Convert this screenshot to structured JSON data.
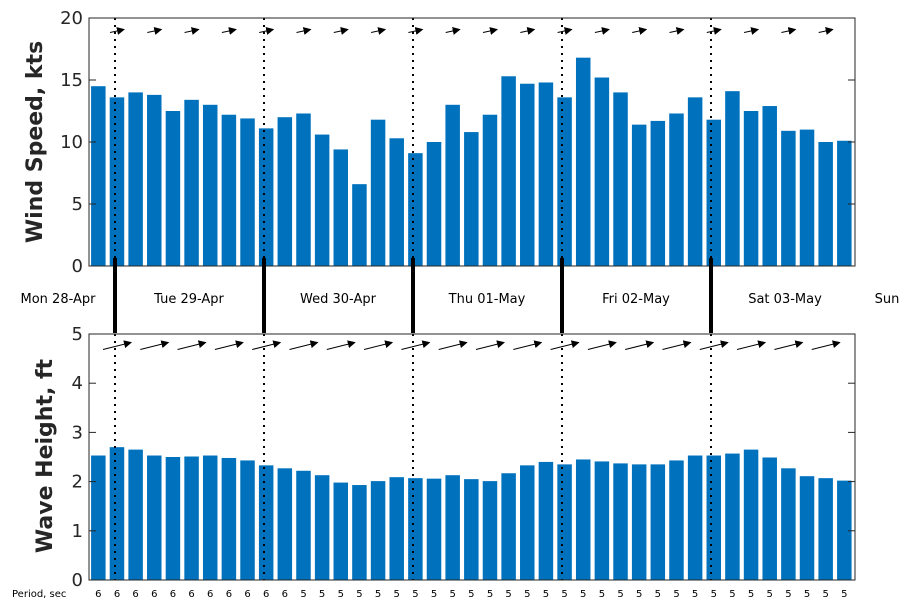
{
  "chart_data": [
    {
      "type": "bar",
      "ylabel": "Wind Speed, kts",
      "ylim": [
        0,
        20
      ],
      "yticks": [
        0,
        5,
        10,
        15,
        20
      ],
      "color": "#0072BD",
      "values": [
        14.5,
        13.6,
        14.0,
        13.8,
        12.5,
        13.4,
        13.0,
        12.2,
        11.9,
        11.1,
        12.0,
        12.3,
        10.6,
        9.4,
        6.6,
        11.8,
        10.3,
        9.1,
        10.0,
        13.0,
        10.8,
        12.2,
        15.3,
        14.7,
        14.8,
        13.6,
        16.8,
        15.2,
        14.0,
        11.4,
        11.7,
        12.3,
        13.6,
        11.8,
        14.1,
        12.5,
        12.9,
        10.9,
        11.0,
        10.0,
        10.1
      ],
      "direction_arrows": "west",
      "grid": false
    },
    {
      "type": "bar",
      "ylabel": "Wave Height, ft",
      "ylim": [
        0,
        5
      ],
      "yticks": [
        0,
        1,
        2,
        3,
        4,
        5
      ],
      "color": "#0072BD",
      "values": [
        2.53,
        2.7,
        2.65,
        2.53,
        2.5,
        2.51,
        2.53,
        2.48,
        2.43,
        2.33,
        2.27,
        2.22,
        2.13,
        1.98,
        1.93,
        2.01,
        2.09,
        2.07,
        2.06,
        2.13,
        2.05,
        2.01,
        2.17,
        2.33,
        2.4,
        2.35,
        2.45,
        2.41,
        2.37,
        2.35,
        2.35,
        2.43,
        2.53,
        2.53,
        2.57,
        2.65,
        2.49,
        2.27,
        2.11,
        2.07,
        2.02
      ],
      "direction_arrows": "east-northeast",
      "period_label": "Period, sec",
      "periods": [
        "6",
        "6",
        "6",
        "6",
        "6",
        "6",
        "6",
        "6",
        "6",
        "6",
        "6",
        "5",
        "5",
        "5",
        "5",
        "5",
        "5",
        "5",
        "5",
        "5",
        "5",
        "5",
        "5",
        "5",
        "5",
        "5",
        "5",
        "5",
        "5",
        "5",
        "5",
        "5",
        "5",
        "5",
        "5",
        "5",
        "5",
        "5",
        "5",
        "5",
        "5"
      ],
      "grid": false
    }
  ],
  "days": [
    "Mon 28-Apr",
    "Tue 29-Apr",
    "Wed 30-Apr",
    "Thu 01-May",
    "Fri 02-May",
    "Sat 03-May",
    "Sun"
  ]
}
